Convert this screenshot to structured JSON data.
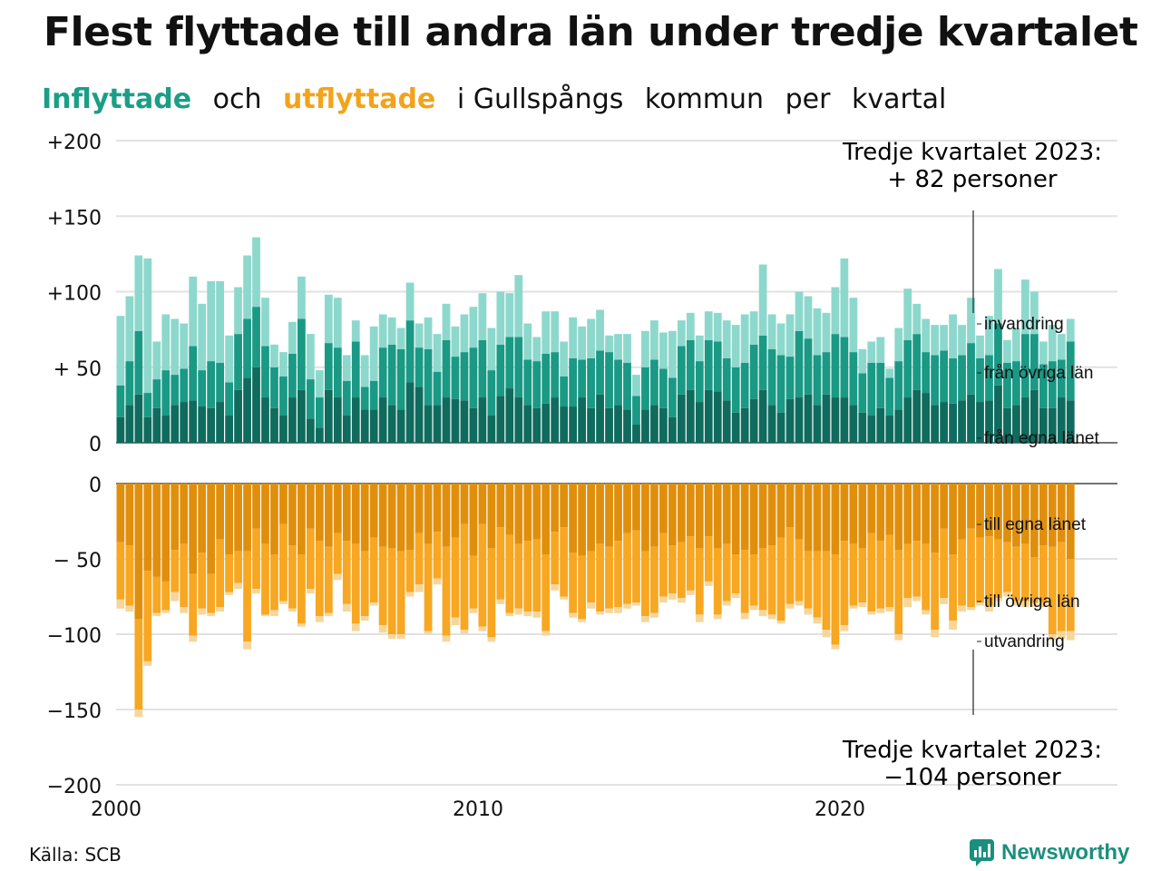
{
  "header": {
    "title": "Flest flyttade till andra län under tredje kvartalet",
    "subtitle_parts": [
      "Inflyttade",
      "och",
      "utflyttade",
      "i Gullspångs",
      "kommun",
      "per",
      "kvartal"
    ]
  },
  "annotations": {
    "top_line1": "Tredje kvartalet 2023:",
    "top_line2": "+ 82 personer",
    "bottom_line1": "Tredje kvartalet 2023:",
    "bottom_line2": "−104 personer"
  },
  "footer": {
    "source": "Källa: SCB",
    "brand": "Newsworthy"
  },
  "colors": {
    "in_own": "#0f6b5d",
    "in_other": "#1a9985",
    "in_immig": "#8dd8cc",
    "out_own": "#e08f0d",
    "out_other": "#f7a721",
    "out_emig": "#f6d69b",
    "accent_green": "#1b9e86",
    "accent_orange": "#f2a31c"
  },
  "chart_data": [
    {
      "type": "bar",
      "stacked": true,
      "title": "Inflyttade",
      "x_start": "2000 Q1",
      "x_ticks": [
        "2000",
        "2010",
        "2020"
      ],
      "y_ticks": [
        "+200",
        "+150",
        "+100",
        "+ 50",
        "0"
      ],
      "ylim": [
        0,
        200
      ],
      "grid": true,
      "series": [
        {
          "name": "från egna länet",
          "values": [
            17,
            25,
            32,
            17,
            23,
            18,
            25,
            27,
            28,
            24,
            23,
            27,
            18,
            35,
            43,
            50,
            30,
            23,
            18,
            30,
            35,
            16,
            10,
            35,
            30,
            18,
            30,
            22,
            22,
            30,
            25,
            22,
            40,
            37,
            25,
            25,
            30,
            29,
            28,
            23,
            30,
            18,
            31,
            36,
            30,
            25,
            23,
            26,
            30,
            24,
            24,
            30,
            23,
            32,
            23,
            25,
            22,
            12,
            22,
            25,
            23,
            17,
            32,
            35,
            27,
            35,
            34,
            28,
            20,
            23,
            29,
            35,
            25,
            20,
            29,
            30,
            32,
            25,
            32,
            30,
            30,
            25,
            20,
            18,
            23,
            18,
            22,
            30,
            35,
            33,
            25,
            27,
            26,
            28,
            32,
            27,
            28,
            38,
            23,
            25,
            30,
            35,
            23,
            23,
            30,
            28
          ],
          "note": "estimated per quarter"
        },
        {
          "name": "från övriga län",
          "values": [
            21,
            29,
            42,
            16,
            19,
            30,
            20,
            22,
            36,
            24,
            31,
            26,
            22,
            37,
            39,
            40,
            34,
            27,
            26,
            29,
            47,
            26,
            20,
            31,
            33,
            23,
            37,
            15,
            19,
            33,
            40,
            40,
            41,
            26,
            37,
            22,
            38,
            28,
            32,
            40,
            38,
            30,
            34,
            34,
            40,
            30,
            31,
            33,
            30,
            20,
            32,
            25,
            33,
            29,
            37,
            30,
            31,
            19,
            28,
            30,
            26,
            26,
            32,
            33,
            27,
            33,
            33,
            28,
            30,
            30,
            36,
            36,
            37,
            38,
            28,
            44,
            37,
            33,
            28,
            42,
            40,
            35,
            26,
            35,
            30,
            25,
            32,
            38,
            37,
            27,
            33,
            34,
            30,
            30,
            34,
            29,
            30,
            41,
            30,
            29,
            42,
            37,
            29,
            31,
            25,
            39
          ],
          "note": "estimated"
        },
        {
          "name": "invandring",
          "values": [
            46,
            43,
            50,
            89,
            25,
            37,
            37,
            30,
            46,
            44,
            53,
            54,
            31,
            31,
            42,
            46,
            32,
            15,
            16,
            21,
            28,
            30,
            18,
            32,
            33,
            17,
            14,
            21,
            36,
            22,
            18,
            14,
            25,
            16,
            21,
            25,
            24,
            20,
            25,
            27,
            31,
            28,
            35,
            29,
            41,
            24,
            16,
            28,
            27,
            23,
            27,
            22,
            26,
            27,
            11,
            17,
            19,
            14,
            24,
            26,
            24,
            31,
            17,
            18,
            17,
            19,
            19,
            25,
            28,
            32,
            22,
            47,
            23,
            21,
            28,
            26,
            28,
            31,
            26,
            31,
            52,
            36,
            16,
            14,
            17,
            6,
            22,
            34,
            20,
            22,
            20,
            17,
            29,
            20,
            30,
            15,
            26,
            36,
            15,
            22,
            36,
            28,
            15,
            24,
            17,
            15
          ],
          "note": "estimated"
        }
      ]
    },
    {
      "type": "bar",
      "stacked": true,
      "title": "Utflyttade",
      "x_start": "2000 Q1",
      "x_ticks": [
        "2000",
        "2010",
        "2020"
      ],
      "y_ticks": [
        "0",
        "− 50",
        "−100",
        "−150",
        "−200"
      ],
      "ylim": [
        -200,
        0
      ],
      "grid": true,
      "series": [
        {
          "name": "till egna länet",
          "values": [
            -39,
            -41,
            -90,
            -58,
            -62,
            -65,
            -44,
            -40,
            -60,
            -46,
            -60,
            -37,
            -47,
            -45,
            -45,
            -30,
            -40,
            -47,
            -27,
            -41,
            -47,
            -30,
            -38,
            -42,
            -33,
            -38,
            -40,
            -45,
            -36,
            -42,
            -43,
            -45,
            -44,
            -33,
            -40,
            -32,
            -42,
            -36,
            -27,
            -48,
            -27,
            -43,
            -29,
            -34,
            -40,
            -38,
            -37,
            -47,
            -32,
            -29,
            -46,
            -48,
            -45,
            -40,
            -42,
            -38,
            -33,
            -31,
            -45,
            -42,
            -33,
            -41,
            -39,
            -35,
            -43,
            -35,
            -43,
            -40,
            -47,
            -44,
            -47,
            -43,
            -41,
            -36,
            -29,
            -37,
            -45,
            -45,
            -45,
            -47,
            -38,
            -40,
            -43,
            -33,
            -38,
            -34,
            -44,
            -40,
            -38,
            -40,
            -46,
            -30,
            -47,
            -37,
            -30,
            -36,
            -35,
            -37,
            -39,
            -42,
            -40,
            -49,
            -41,
            -42,
            -39,
            -50
          ],
          "note": "estimated"
        },
        {
          "name": "till övriga län",
          "values": [
            -38,
            -40,
            -60,
            -60,
            -24,
            -19,
            -28,
            -42,
            -41,
            -37,
            -26,
            -45,
            -25,
            -21,
            -60,
            -40,
            -47,
            -37,
            -51,
            -42,
            -46,
            -40,
            -50,
            -44,
            -27,
            -42,
            -53,
            -43,
            -43,
            -52,
            -57,
            -55,
            -28,
            -34,
            -58,
            -31,
            -59,
            -53,
            -70,
            -35,
            -68,
            -59,
            -48,
            -52,
            -43,
            -47,
            -48,
            -51,
            -35,
            -46,
            -40,
            -42,
            -34,
            -45,
            -41,
            -44,
            -47,
            -48,
            -43,
            -44,
            -42,
            -32,
            -37,
            -36,
            -44,
            -30,
            -44,
            -38,
            -26,
            -42,
            -34,
            -41,
            -46,
            -55,
            -51,
            -41,
            -38,
            -44,
            -52,
            -60,
            -56,
            -41,
            -36,
            -52,
            -45,
            -48,
            -56,
            -36,
            -37,
            -44,
            -51,
            -46,
            -44,
            -44,
            -52,
            -43,
            -46,
            -39,
            -33,
            -36,
            -38,
            -30,
            -38,
            -58,
            -59,
            -48
          ],
          "note": "estimated"
        },
        {
          "name": "utvandring",
          "values": [
            -6,
            -4,
            -5,
            -3,
            -2,
            -2,
            -6,
            -4,
            -4,
            -4,
            -2,
            -3,
            -2,
            -4,
            -5,
            -3,
            -1,
            -4,
            -2,
            -2,
            -2,
            -3,
            -4,
            -2,
            -4,
            -5,
            -5,
            -3,
            -2,
            -5,
            -3,
            -3,
            -3,
            -5,
            -2,
            -4,
            -4,
            -5,
            -3,
            -3,
            -3,
            -3,
            -3,
            -2,
            -4,
            -3,
            -4,
            -3,
            -4,
            -2,
            -3,
            -2,
            -4,
            -2,
            -3,
            -4,
            -3,
            -2,
            -4,
            -3,
            -4,
            -4,
            -3,
            -3,
            -5,
            -3,
            -3,
            -3,
            -3,
            -4,
            -3,
            -4,
            -3,
            -2,
            -3,
            -3,
            -4,
            -4,
            -5,
            -3,
            -4,
            -2,
            -3,
            -2,
            -3,
            -3,
            -4,
            -6,
            -3,
            -3,
            -5,
            -4,
            -6,
            -4,
            -2,
            -2,
            -4,
            -2,
            -3,
            -3,
            -4,
            -3,
            -3,
            -4,
            -5,
            -6
          ],
          "note": "estimated"
        }
      ]
    }
  ]
}
